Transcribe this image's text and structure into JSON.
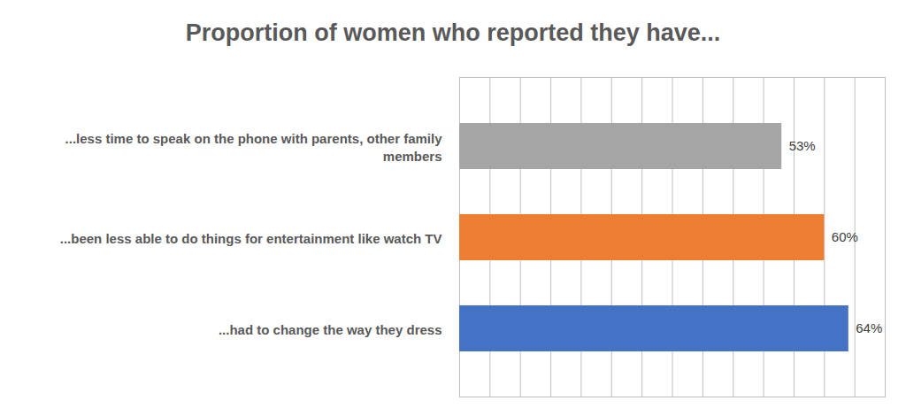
{
  "chart_data": {
    "type": "bar",
    "title": "Proportion of women who reported they have...",
    "orientation": "horizontal",
    "categories": [
      "...less time to speak on the phone with parents, other family members",
      "...been less able to do things for entertainment like watch TV",
      "...had to change the way they dress"
    ],
    "values": [
      53,
      60,
      64
    ],
    "value_labels": [
      "53%",
      "60%",
      "64%"
    ],
    "colors": [
      "#a5a5a5",
      "#ed7d31",
      "#4472c4"
    ],
    "xlim": [
      0,
      70
    ],
    "xticks": [
      0,
      5,
      10,
      15,
      20,
      25,
      30,
      35,
      40,
      45,
      50,
      55,
      60,
      65,
      70
    ],
    "grid": true,
    "data_labels": true,
    "tick_labels": false
  }
}
